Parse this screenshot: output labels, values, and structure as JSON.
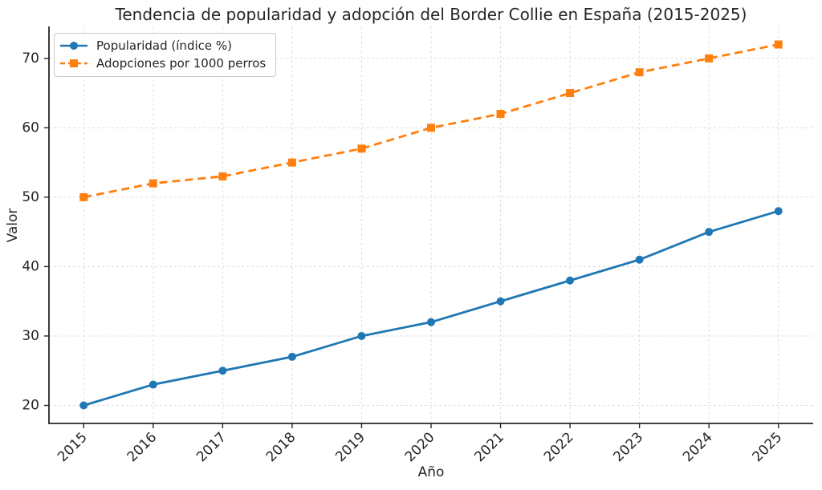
{
  "chart_data": {
    "type": "line",
    "title": "Tendencia de popularidad y adopción del Border Collie en España (2015-2025)",
    "xlabel": "Año",
    "ylabel": "Valor",
    "x": [
      2015,
      2016,
      2017,
      2018,
      2019,
      2020,
      2021,
      2022,
      2023,
      2024,
      2025
    ],
    "series": [
      {
        "name": "Popularidad (índice %)",
        "color": "#1f77b4",
        "line_style": "solid",
        "marker": "circle",
        "values": [
          20,
          23,
          25,
          27,
          30,
          32,
          35,
          38,
          41,
          45,
          48
        ]
      },
      {
        "name": "Adopciones por 1000 perros",
        "color": "#ff7f0e",
        "line_style": "dashed",
        "marker": "square",
        "values": [
          50,
          52,
          53,
          55,
          57,
          60,
          62,
          65,
          68,
          70,
          72
        ]
      }
    ],
    "xlim": [
      2014.5,
      2025.5
    ],
    "ylim": [
      17.4,
      74.6
    ],
    "yticks": [
      20,
      30,
      40,
      50,
      60,
      70
    ],
    "xtick_labels": [
      "2015",
      "2016",
      "2017",
      "2018",
      "2019",
      "2020",
      "2021",
      "2022",
      "2023",
      "2024",
      "2025"
    ],
    "xtick_rotation_deg": 45,
    "grid": true,
    "grid_style": "dashed",
    "grid_color": "#dcdcdc",
    "axis_color": "#262626",
    "text_color": "#262626",
    "legend_position": "upper left"
  }
}
